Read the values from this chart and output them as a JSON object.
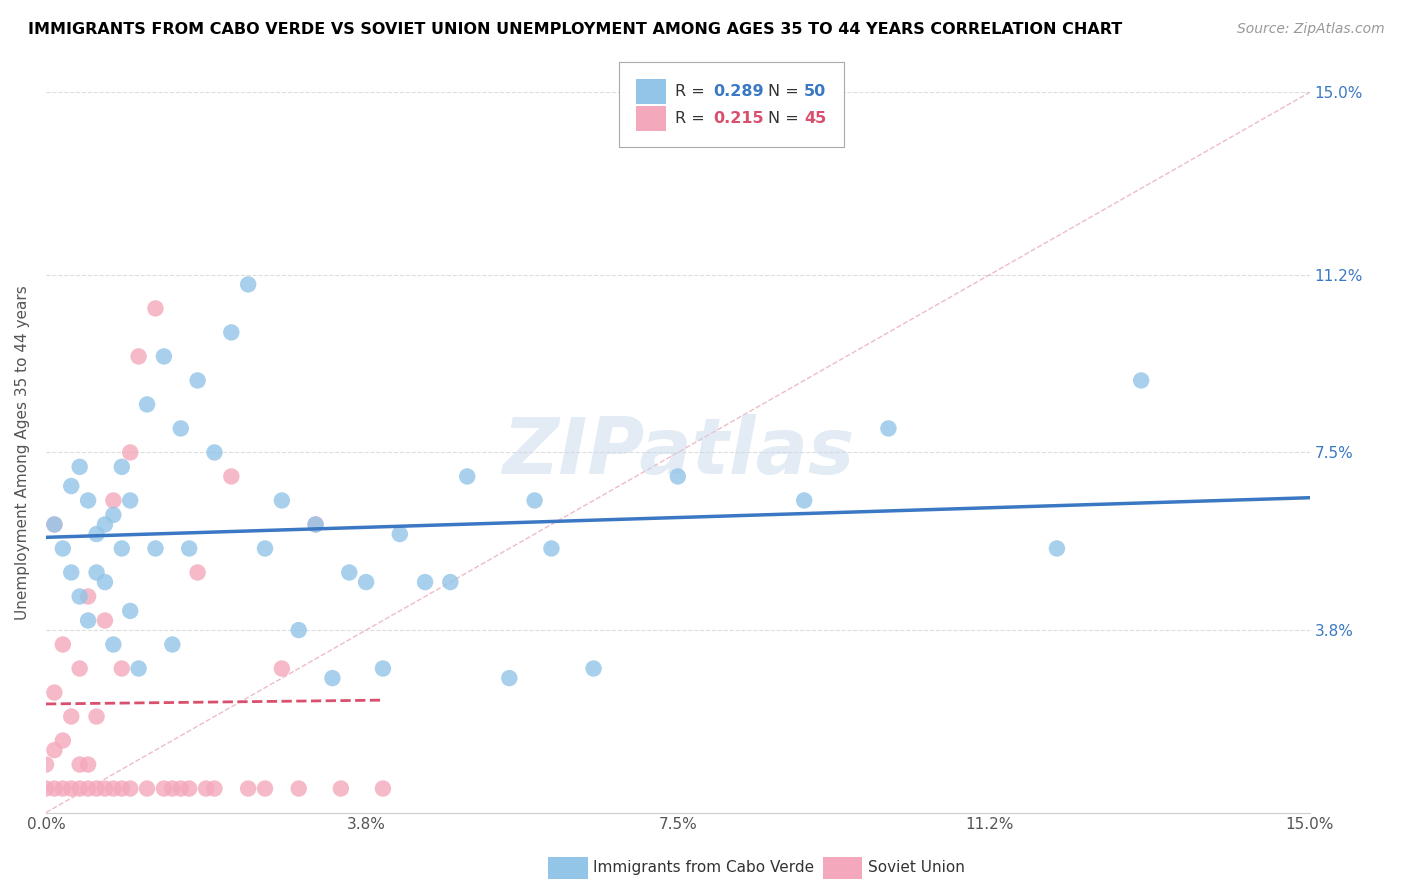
{
  "title": "IMMIGRANTS FROM CABO VERDE VS SOVIET UNION UNEMPLOYMENT AMONG AGES 35 TO 44 YEARS CORRELATION CHART",
  "source": "Source: ZipAtlas.com",
  "ylabel": "Unemployment Among Ages 35 to 44 years",
  "xlim": [
    0.0,
    0.15
  ],
  "ylim": [
    0.0,
    0.15
  ],
  "xtick_values": [
    0.0,
    0.038,
    0.075,
    0.112,
    0.15
  ],
  "xtick_labels": [
    "0.0%",
    "3.8%",
    "7.5%",
    "11.2%",
    "15.0%"
  ],
  "ytick_right_values": [
    0.15,
    0.112,
    0.075,
    0.038
  ],
  "ytick_right_labels": [
    "15.0%",
    "11.2%",
    "7.5%",
    "3.8%"
  ],
  "cabo_verde_color": "#92C5E8",
  "soviet_color": "#F4A8BB",
  "cabo_verde_line_color": "#3B78C3",
  "soviet_line_color": "#D94F6E",
  "cabo_verde_R": 0.289,
  "cabo_verde_N": 50,
  "soviet_R": 0.215,
  "soviet_N": 45,
  "watermark": "ZIPatlas",
  "legend_label_1": "Immigrants from Cabo Verde",
  "legend_label_2": "Soviet Union",
  "cabo_verde_x": [
    0.001,
    0.002,
    0.003,
    0.003,
    0.004,
    0.004,
    0.005,
    0.005,
    0.006,
    0.006,
    0.007,
    0.007,
    0.008,
    0.008,
    0.009,
    0.009,
    0.01,
    0.01,
    0.011,
    0.012,
    0.013,
    0.014,
    0.015,
    0.016,
    0.017,
    0.018,
    0.02,
    0.022,
    0.024,
    0.026,
    0.028,
    0.03,
    0.032,
    0.034,
    0.036,
    0.038,
    0.04,
    0.042,
    0.045,
    0.048,
    0.05,
    0.055,
    0.058,
    0.06,
    0.065,
    0.075,
    0.09,
    0.1,
    0.12,
    0.13
  ],
  "cabo_verde_y": [
    0.06,
    0.055,
    0.068,
    0.05,
    0.072,
    0.045,
    0.065,
    0.04,
    0.058,
    0.05,
    0.048,
    0.06,
    0.062,
    0.035,
    0.055,
    0.072,
    0.042,
    0.065,
    0.03,
    0.085,
    0.055,
    0.095,
    0.035,
    0.08,
    0.055,
    0.09,
    0.075,
    0.1,
    0.11,
    0.055,
    0.065,
    0.038,
    0.06,
    0.028,
    0.05,
    0.048,
    0.03,
    0.058,
    0.048,
    0.048,
    0.07,
    0.028,
    0.065,
    0.055,
    0.03,
    0.07,
    0.065,
    0.08,
    0.055,
    0.09
  ],
  "soviet_x": [
    0.0,
    0.0,
    0.001,
    0.001,
    0.001,
    0.001,
    0.002,
    0.002,
    0.002,
    0.003,
    0.003,
    0.004,
    0.004,
    0.004,
    0.005,
    0.005,
    0.005,
    0.006,
    0.006,
    0.007,
    0.007,
    0.008,
    0.008,
    0.009,
    0.009,
    0.01,
    0.01,
    0.011,
    0.012,
    0.013,
    0.014,
    0.015,
    0.016,
    0.017,
    0.018,
    0.019,
    0.02,
    0.022,
    0.024,
    0.026,
    0.028,
    0.03,
    0.032,
    0.035,
    0.04
  ],
  "soviet_y": [
    0.005,
    0.01,
    0.005,
    0.013,
    0.025,
    0.06,
    0.005,
    0.015,
    0.035,
    0.005,
    0.02,
    0.005,
    0.01,
    0.03,
    0.005,
    0.01,
    0.045,
    0.005,
    0.02,
    0.005,
    0.04,
    0.005,
    0.065,
    0.005,
    0.03,
    0.005,
    0.075,
    0.095,
    0.005,
    0.105,
    0.005,
    0.005,
    0.005,
    0.005,
    0.05,
    0.005,
    0.005,
    0.07,
    0.005,
    0.005,
    0.03,
    0.005,
    0.06,
    0.005,
    0.005
  ]
}
